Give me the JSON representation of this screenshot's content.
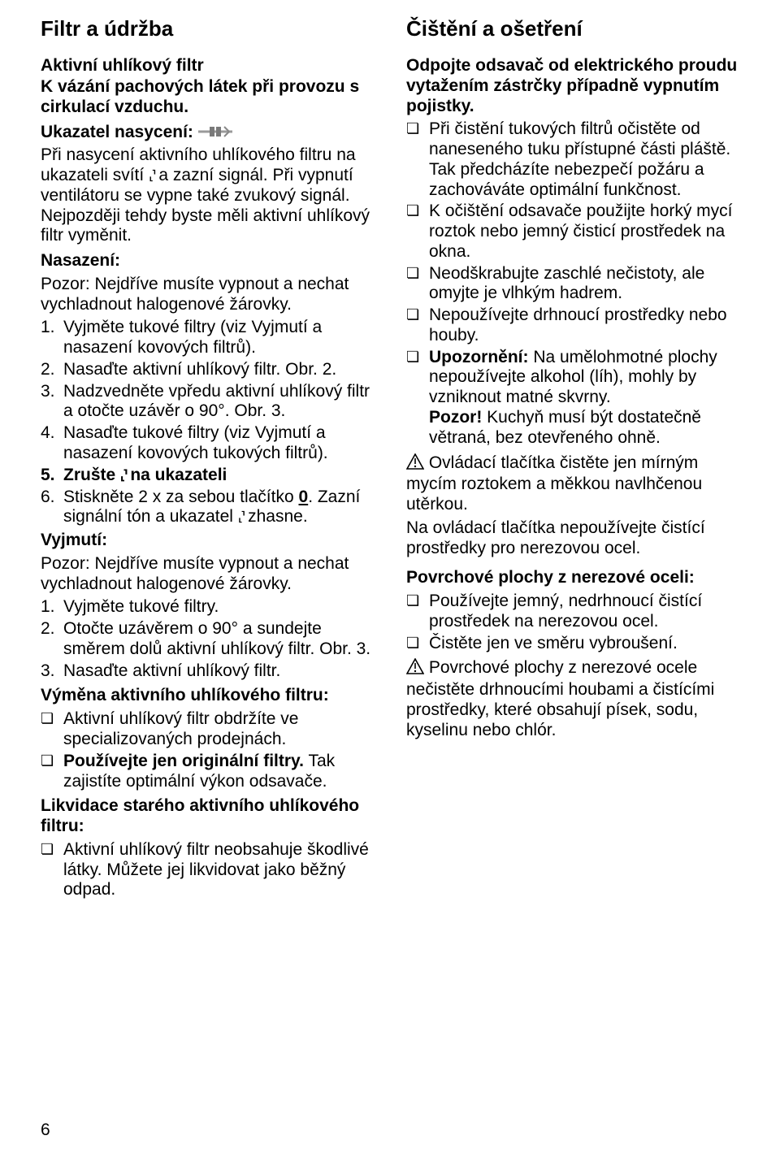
{
  "page_number": "6",
  "left": {
    "h1": "Filtr a údržba",
    "h2": "Aktivní uhlíkový filtr",
    "intro": "K vázání pachových látek při provozu s cirkulací vzduchu.",
    "ukazatel_label": "Ukazatel nasycení:",
    "ukazatel_text_a": "Při nasycení aktivního uhlíkového filtru na ukazateli svítí ",
    "ukazatel_text_b": " a zazní signál. Při vypnutí ventilátoru se vypne také zvukový signál. Nejpozději tehdy byste měli aktivní uhlíkový filtr vyměnit.",
    "nasazeni_label": "Nasazení:",
    "nasazeni_warn": "Pozor: Nejdříve musíte vypnout a nechat vychladnout halogenové žárovky.",
    "nas_list": [
      {
        "n": "1.",
        "t": "Vyjměte tukové filtry (viz Vyjmutí a nasazení kovových filtrů)."
      },
      {
        "n": "2.",
        "t": "Nasaďte aktivní uhlíkový filtr. Obr. 2."
      },
      {
        "n": "3.",
        "t": "Nadzvedněte vpředu aktivní uhlíkový filtr a otočte uzávěr o 90°. Obr. 3."
      },
      {
        "n": "4.",
        "t": "Nasaďte tukové filtry (viz Vyjmutí a nasazení kovových tukových filtrů)."
      }
    ],
    "nas5_a": "Zrušte ",
    "nas5_b": " na ukazateli",
    "nas6_a": "Stiskněte 2 x za sebou tlačítko ",
    "nas6_key": "0",
    "nas6_b": ". Zazní signální tón a ukazatel ",
    "nas6_c": " zhasne.",
    "vyjmuti_label": "Vyjmutí:",
    "vyjmuti_warn": "Pozor: Nejdříve musíte vypnout a nechat vychladnout halogenové žárovky.",
    "vyj_list": [
      {
        "n": "1.",
        "t": "Vyjměte tukové filtry."
      },
      {
        "n": "2.",
        "t": "Otočte uzávěrem o 90° a sundejte směrem dolů aktivní uhlíkový filtr. Obr. 3."
      },
      {
        "n": "3.",
        "t": "Nasaďte aktivní uhlíkový filtr."
      }
    ],
    "vymena_label": "Výměna aktivního uhlíkového filtru:",
    "vymena_list": [
      "Aktivní uhlíkový filtr obdržíte ve specializovaných prodejnách.",
      "<b>Používejte jen originální filtry.</b> Tak zajistíte optimální výkon odsavače."
    ],
    "likvid_label": "Likvidace starého aktivního uhlíkového filtru:",
    "likvid_item": "Aktivní uhlíkový filtr neobsahuje škodlivé látky. Můžete jej likvidovat jako běžný odpad."
  },
  "right": {
    "h1": "Čištění a ošetření",
    "lead": "Odpojte odsavač od elektrického proudu vytažením zástrčky případně vypnutím pojistky.",
    "list1": [
      "Při čistění tukových filtrů očistěte od naneseného tuku přístupné části pláště. Tak předcházíte nebezpečí požáru a zachováváte optimální funkčnost.",
      "K očištění odsavače použijte horký mycí roztok nebo jemný čisticí prostředek na okna.",
      "Neodškrabujte zaschlé nečistoty, ale omyjte je vlhkým hadrem.",
      "Nepoužívejte drhnoucí prostředky nebo houby.",
      "<b>Upozornění:</b> Na umělohmotné plochy nepoužívejte alkohol (líh), mohly by vzniknout matné skvrny.<br><b>Pozor!</b> Kuchyň musí být dostatečně větraná, bez otevřeného ohně."
    ],
    "warn1": "Ovládací tlačítka čistěte jen mírným mycím roztokem a měkkou navlhčenou utěrkou.",
    "warn1b": "Na ovládací tlačítka nepoužívejte čistící prostředky pro nerezovou ocel.",
    "steel_label": "Povrchové plochy z nerezové oceli:",
    "steel_list": [
      "Používejte jemný, nedrhnoucí čistící prostředek na nerezovou ocel.",
      "Čistěte jen ve směru vybroušení."
    ],
    "warn2": "Povrchové plochy z nerezové ocele nečistěte drhnoucími houbami a čistícími prostředky, které obsahují písek, sodu, kyselinu nebo chlór."
  }
}
